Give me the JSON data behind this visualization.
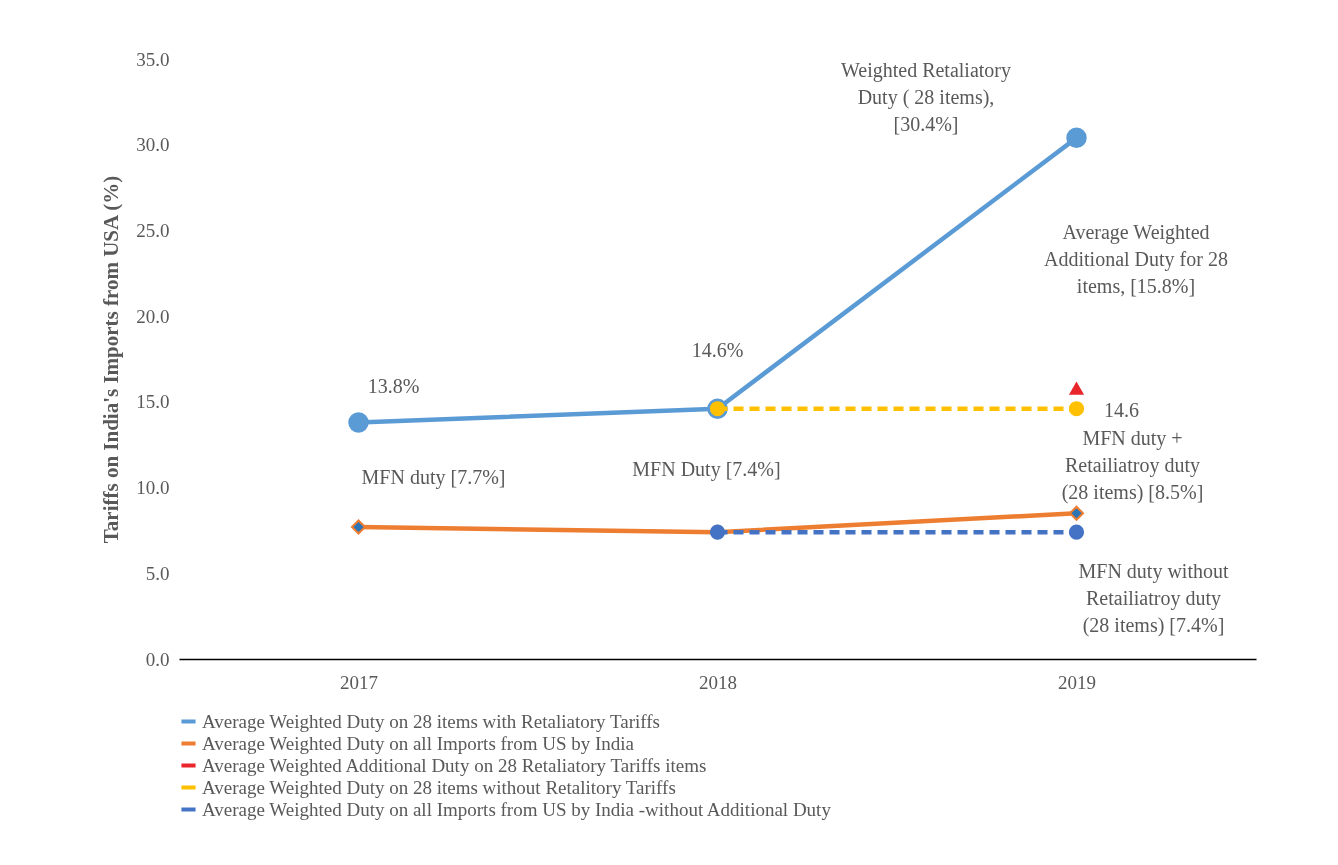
{
  "chart_data": {
    "type": "line",
    "ylabel": "Tariffs on India's Imports from USA (%)",
    "categories": [
      "2017",
      "2018",
      "2019"
    ],
    "series": [
      {
        "name": "Average Weighted  Duty on 28 items with Retaliatory Tariffs",
        "color": "#5b9bd5",
        "values": [
          13.8,
          14.6,
          30.4
        ],
        "marker": "circle",
        "line_style": "solid"
      },
      {
        "name": "Average Weighted Duty on all Imports from US by India",
        "color": "#ed7d31",
        "values": [
          7.7,
          7.4,
          8.5
        ],
        "marker": "diamond",
        "line_style": "solid"
      },
      {
        "name": "Average Weighted Additional Duty on 28 Retaliatory Tariffs items",
        "color": "#e8262b",
        "values": [
          null,
          null,
          15.8
        ],
        "marker": "triangle",
        "line_style": "dashed"
      },
      {
        "name": "Average Weighted  Duty on 28 items without Retalitory Tariffs",
        "color": "#ffc000",
        "values": [
          null,
          14.6,
          14.6
        ],
        "marker": "circle",
        "line_style": "dashed"
      },
      {
        "name": "Average Weighted Duty on all Imports from US by India -without Additional Duty",
        "color": "#4472c4",
        "values": [
          null,
          7.4,
          7.4
        ],
        "marker": "circle",
        "line_style": "dashed"
      }
    ],
    "ylim": [
      0,
      35
    ],
    "yticks": [
      {
        "value": 0,
        "label": "0.0"
      },
      {
        "value": 5,
        "label": "5.0"
      },
      {
        "value": 10,
        "label": "10.0"
      },
      {
        "value": 15,
        "label": "15.0"
      },
      {
        "value": 20,
        "label": "20.0"
      },
      {
        "value": 25,
        "label": "25.0"
      },
      {
        "value": 30,
        "label": "30.0"
      },
      {
        "value": 35,
        "label": "35.0"
      }
    ],
    "grid": false,
    "legend": "bottom",
    "annotations": [
      {
        "text": "13.8%",
        "x": "2017",
        "y": 13.8
      },
      {
        "text": "14.6%",
        "x": "2018",
        "y": 14.6
      },
      "Weighted Retaliatory Duty ( 28 items), [30.4%]",
      "Average Weighted Additional Duty for 28 items, [15.8%]",
      {
        "text": "14.6",
        "x": "2019",
        "y": 14.6
      },
      {
        "text": "MFN duty + Retailiatroy duty (28 items) [8.5%]",
        "x": "2019",
        "y": 8.5
      },
      {
        "text": "MFN duty without Retailiatroy duty (28 items) [7.4%]",
        "x": "2019",
        "y": 7.4
      },
      {
        "text": "MFN duty [7.7%]",
        "x": "2017",
        "y": 7.7
      },
      {
        "text": "MFN Duty [7.4%]",
        "x": "2018",
        "y": 7.4
      }
    ]
  }
}
